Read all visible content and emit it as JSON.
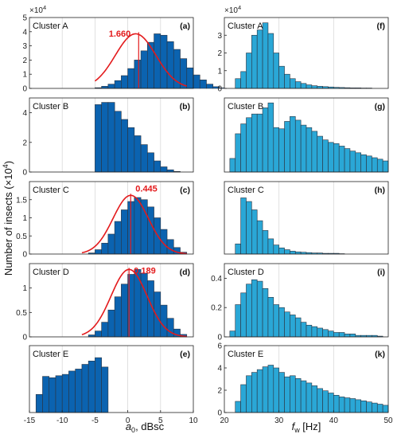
{
  "figure": {
    "ylabel_left": "Number of insects (×10",
    "ylabel_exp": "4",
    "ylabel_close": ")",
    "exponent_label_base": "×10",
    "exponent_label_exp": "4",
    "xlabel_left_main": "a",
    "xlabel_left_sub": "0",
    "xlabel_left_tail": ", dBsc",
    "xlabel_right_main": "f",
    "xlabel_right_sub": "w",
    "xlabel_right_tail": " [Hz]"
  },
  "colors": {
    "left_bar": "#0b63b0",
    "right_bar": "#2aa7d6",
    "bar_edge": "#2b3340",
    "fit": "#e31a1c",
    "annotation": "#e31a1c",
    "grid": "#d9d9d9"
  },
  "chart_data": [
    {
      "type": "bar",
      "panel_id": "(a)",
      "title": "Cluster A",
      "xlim": [
        -15,
        10
      ],
      "ylim": [
        0,
        5
      ],
      "xticks": [],
      "yticks": [
        0,
        1,
        2,
        3,
        4,
        5
      ],
      "bin_start": -5,
      "bin_width": 1,
      "values": [
        0.05,
        0.15,
        0.3,
        0.55,
        0.9,
        1.4,
        2.0,
        2.65,
        3.25,
        3.85,
        3.75,
        3.3,
        2.75,
        2.1,
        1.45,
        0.95,
        0.6,
        0.3,
        0.12,
        0.04
      ],
      "fit": {
        "mu": 1.2,
        "sigma": 3.1,
        "peak": 3.85,
        "range": [
          -5,
          9
        ]
      },
      "mean_line": 1.66,
      "annotation": "1.660",
      "exponent": true
    },
    {
      "type": "bar",
      "panel_id": "(b)",
      "title": "Cluster B",
      "xlim": [
        -15,
        10
      ],
      "ylim": [
        0,
        5
      ],
      "xticks": [],
      "yticks": [
        0,
        2,
        4
      ],
      "bin_start": -5,
      "bin_width": 1,
      "values": [
        4.55,
        4.7,
        4.7,
        4.1,
        3.55,
        3.0,
        2.45,
        1.85,
        1.3,
        0.75,
        0.35,
        0.15,
        0.04
      ]
    },
    {
      "type": "bar",
      "panel_id": "(c)",
      "title": "Cluster C",
      "xlim": [
        -15,
        10
      ],
      "ylim": [
        0,
        2
      ],
      "xticks": [],
      "yticks": [
        0,
        0.5,
        1,
        1.5
      ],
      "bin_start": -6,
      "bin_width": 1,
      "values": [
        0.03,
        0.12,
        0.3,
        0.55,
        0.9,
        1.22,
        1.45,
        1.56,
        1.5,
        1.3,
        1.0,
        0.68,
        0.4,
        0.18,
        0.05
      ],
      "fit": {
        "mu": 0.45,
        "sigma": 2.7,
        "peak": 1.62,
        "range": [
          -7,
          9
        ]
      },
      "mean_line": 0.445,
      "annotation": "0.445"
    },
    {
      "type": "bar",
      "panel_id": "(d)",
      "title": "Cluster D",
      "xlim": [
        -15,
        10
      ],
      "ylim": [
        0,
        1.5
      ],
      "xticks": [],
      "yticks": [
        0,
        0.5,
        1
      ],
      "bin_start": -6,
      "bin_width": 1,
      "values": [
        0.04,
        0.12,
        0.3,
        0.55,
        0.82,
        1.08,
        1.28,
        1.38,
        1.3,
        1.15,
        0.92,
        0.65,
        0.38,
        0.16,
        0.05
      ],
      "fit": {
        "mu": 0.2,
        "sigma": 2.75,
        "peak": 1.38,
        "range": [
          -7,
          9
        ]
      },
      "mean_line": 0.189,
      "annotation": "0.189"
    },
    {
      "type": "bar",
      "panel_id": "(e)",
      "title": "Cluster E",
      "xlim": [
        -15,
        10
      ],
      "ylim": [
        0,
        1
      ],
      "xticks": [
        -15,
        -10,
        -5,
        0,
        5,
        10
      ],
      "yticks": [],
      "bin_start": -14,
      "bin_width": 1,
      "values": [
        0.27,
        0.54,
        0.52,
        0.55,
        0.57,
        0.62,
        0.65,
        0.72,
        0.77,
        0.82,
        0.68
      ]
    },
    {
      "type": "bar",
      "panel_id": "(f)",
      "title": "Cluster A",
      "xlim": [
        20,
        50
      ],
      "ylim": [
        0,
        4
      ],
      "xticks": [],
      "yticks": [
        0,
        1,
        2,
        3
      ],
      "bin_start": 22,
      "bin_width": 1,
      "values": [
        0.55,
        0.95,
        2.0,
        3.0,
        3.3,
        3.7,
        3.1,
        2.0,
        1.25,
        0.8,
        0.55,
        0.38,
        0.28,
        0.2,
        0.15,
        0.12,
        0.1,
        0.08,
        0.06,
        0.05,
        0.04,
        0.03,
        0.03,
        0.02,
        0.02
      ],
      "exponent": true
    },
    {
      "type": "bar",
      "panel_id": "(g)",
      "title": "Cluster B",
      "xlim": [
        20,
        50
      ],
      "ylim": [
        0,
        3
      ],
      "xticks": [],
      "yticks": [],
      "bin_start": 21,
      "bin_width": 1,
      "values": [
        0.55,
        1.55,
        1.95,
        2.2,
        2.35,
        2.35,
        2.6,
        2.8,
        1.8,
        1.75,
        2.05,
        2.25,
        2.1,
        1.9,
        1.8,
        1.65,
        1.45,
        1.3,
        1.2,
        1.15,
        1.05,
        0.95,
        0.85,
        0.78,
        0.7,
        0.65,
        0.58,
        0.52,
        0.45
      ]
    },
    {
      "type": "bar",
      "panel_id": "(h)",
      "title": "Cluster C",
      "xlim": [
        20,
        50
      ],
      "ylim": [
        0,
        2
      ],
      "xticks": [],
      "yticks": [],
      "bin_start": 22,
      "bin_width": 1,
      "values": [
        0.28,
        1.55,
        1.45,
        1.22,
        0.92,
        0.65,
        0.42,
        0.25,
        0.17,
        0.12,
        0.08,
        0.06,
        0.05,
        0.04,
        0.03,
        0.03,
        0.02,
        0.02,
        0.02,
        0.01
      ]
    },
    {
      "type": "bar",
      "panel_id": "(i)",
      "title": "Cluster D",
      "xlim": [
        20,
        50
      ],
      "ylim": [
        0,
        0.5
      ],
      "xticks": [],
      "yticks": [
        0,
        0.2,
        0.4
      ],
      "bin_start": 21,
      "bin_width": 1,
      "values": [
        0.04,
        0.22,
        0.3,
        0.36,
        0.39,
        0.38,
        0.33,
        0.27,
        0.22,
        0.2,
        0.17,
        0.15,
        0.13,
        0.1,
        0.08,
        0.07,
        0.06,
        0.05,
        0.04,
        0.03,
        0.03,
        0.02,
        0.02,
        0.01,
        0.01,
        0.01,
        0.01,
        0.005
      ]
    },
    {
      "type": "bar",
      "panel_id": "(k)",
      "title": "Cluster E",
      "xlim": [
        20,
        50
      ],
      "ylim": [
        0,
        6
      ],
      "xticks": [
        20,
        30,
        40,
        50
      ],
      "yticks": [
        0,
        2,
        4,
        6
      ],
      "bin_start": 22,
      "bin_width": 1,
      "values": [
        1.0,
        2.5,
        3.3,
        3.6,
        3.85,
        4.1,
        4.25,
        4.0,
        3.6,
        3.2,
        3.3,
        3.05,
        2.85,
        2.65,
        2.4,
        2.15,
        1.95,
        1.75,
        1.55,
        1.4,
        1.32,
        1.25,
        1.15,
        1.05,
        0.95,
        0.85,
        0.75,
        0.65
      ]
    }
  ]
}
